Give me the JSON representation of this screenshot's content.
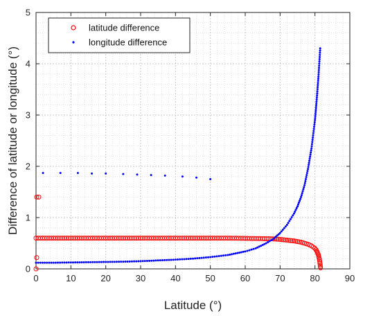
{
  "chart_data": {
    "type": "scatter",
    "xlabel": "Latitude (°)",
    "ylabel": "Difference of latitude or longitude (°)",
    "xlim": [
      0,
      90
    ],
    "ylim": [
      0,
      5
    ],
    "x_ticks": [
      "0",
      "10",
      "20",
      "30",
      "40",
      "50",
      "60",
      "70",
      "80",
      "90"
    ],
    "y_ticks": [
      "0",
      "1",
      "2",
      "3",
      "4",
      "5"
    ],
    "grid": true,
    "grid_style": "dotted minor and major",
    "legend_position": "top-left",
    "series": [
      {
        "name": "latitude difference",
        "marker": "open-circle",
        "color": "#ff0000",
        "description_of_points": "near-constant band at about 0.6 from 0 to about 65°, then gradual decline, then steep drop to 0 at about 81.5°; extra isolated points near x=0",
        "points": [
          [
            0.0,
            0.0
          ],
          [
            0.2,
            0.22
          ],
          [
            0.2,
            1.4
          ],
          [
            0.8,
            1.4
          ],
          [
            0.0,
            0.6
          ],
          [
            5,
            0.6
          ],
          [
            10,
            0.6
          ],
          [
            15,
            0.6
          ],
          [
            20,
            0.6
          ],
          [
            25,
            0.6
          ],
          [
            30,
            0.6
          ],
          [
            35,
            0.6
          ],
          [
            40,
            0.6
          ],
          [
            45,
            0.6
          ],
          [
            50,
            0.6
          ],
          [
            55,
            0.6
          ],
          [
            60,
            0.595
          ],
          [
            65,
            0.59
          ],
          [
            68,
            0.585
          ],
          [
            70,
            0.575
          ],
          [
            72,
            0.56
          ],
          [
            74,
            0.545
          ],
          [
            76,
            0.52
          ],
          [
            78,
            0.48
          ],
          [
            79,
            0.45
          ],
          [
            80,
            0.4
          ],
          [
            80.5,
            0.35
          ],
          [
            81,
            0.27
          ],
          [
            81.3,
            0.18
          ],
          [
            81.5,
            0.08
          ],
          [
            81.6,
            0.02
          ]
        ]
      },
      {
        "name": "longitude difference",
        "marker": "dot",
        "color": "#0000ff",
        "description_of_points": "curve starting at about 0.12 rising exponentially to about 4.3 at about 81.5°; separate sparse row near 1.85 from 2 to 50",
        "points": [
          [
            0,
            0.12
          ],
          [
            5,
            0.12
          ],
          [
            10,
            0.125
          ],
          [
            15,
            0.13
          ],
          [
            20,
            0.135
          ],
          [
            25,
            0.14
          ],
          [
            30,
            0.15
          ],
          [
            35,
            0.165
          ],
          [
            40,
            0.18
          ],
          [
            45,
            0.2
          ],
          [
            50,
            0.23
          ],
          [
            55,
            0.27
          ],
          [
            60,
            0.34
          ],
          [
            63,
            0.4
          ],
          [
            66,
            0.5
          ],
          [
            68,
            0.58
          ],
          [
            70,
            0.7
          ],
          [
            72,
            0.86
          ],
          [
            74,
            1.08
          ],
          [
            75,
            1.22
          ],
          [
            76,
            1.4
          ],
          [
            77,
            1.63
          ],
          [
            78,
            1.95
          ],
          [
            79,
            2.35
          ],
          [
            80,
            2.9
          ],
          [
            80.5,
            3.3
          ],
          [
            81,
            3.75
          ],
          [
            81.5,
            4.3
          ]
        ],
        "sparse_points": [
          [
            2,
            1.87
          ],
          [
            7,
            1.87
          ],
          [
            12,
            1.87
          ],
          [
            16,
            1.86
          ],
          [
            20,
            1.86
          ],
          [
            25,
            1.85
          ],
          [
            29,
            1.84
          ],
          [
            33,
            1.83
          ],
          [
            37,
            1.82
          ],
          [
            42,
            1.8
          ],
          [
            46,
            1.78
          ],
          [
            50,
            1.75
          ]
        ]
      }
    ]
  }
}
